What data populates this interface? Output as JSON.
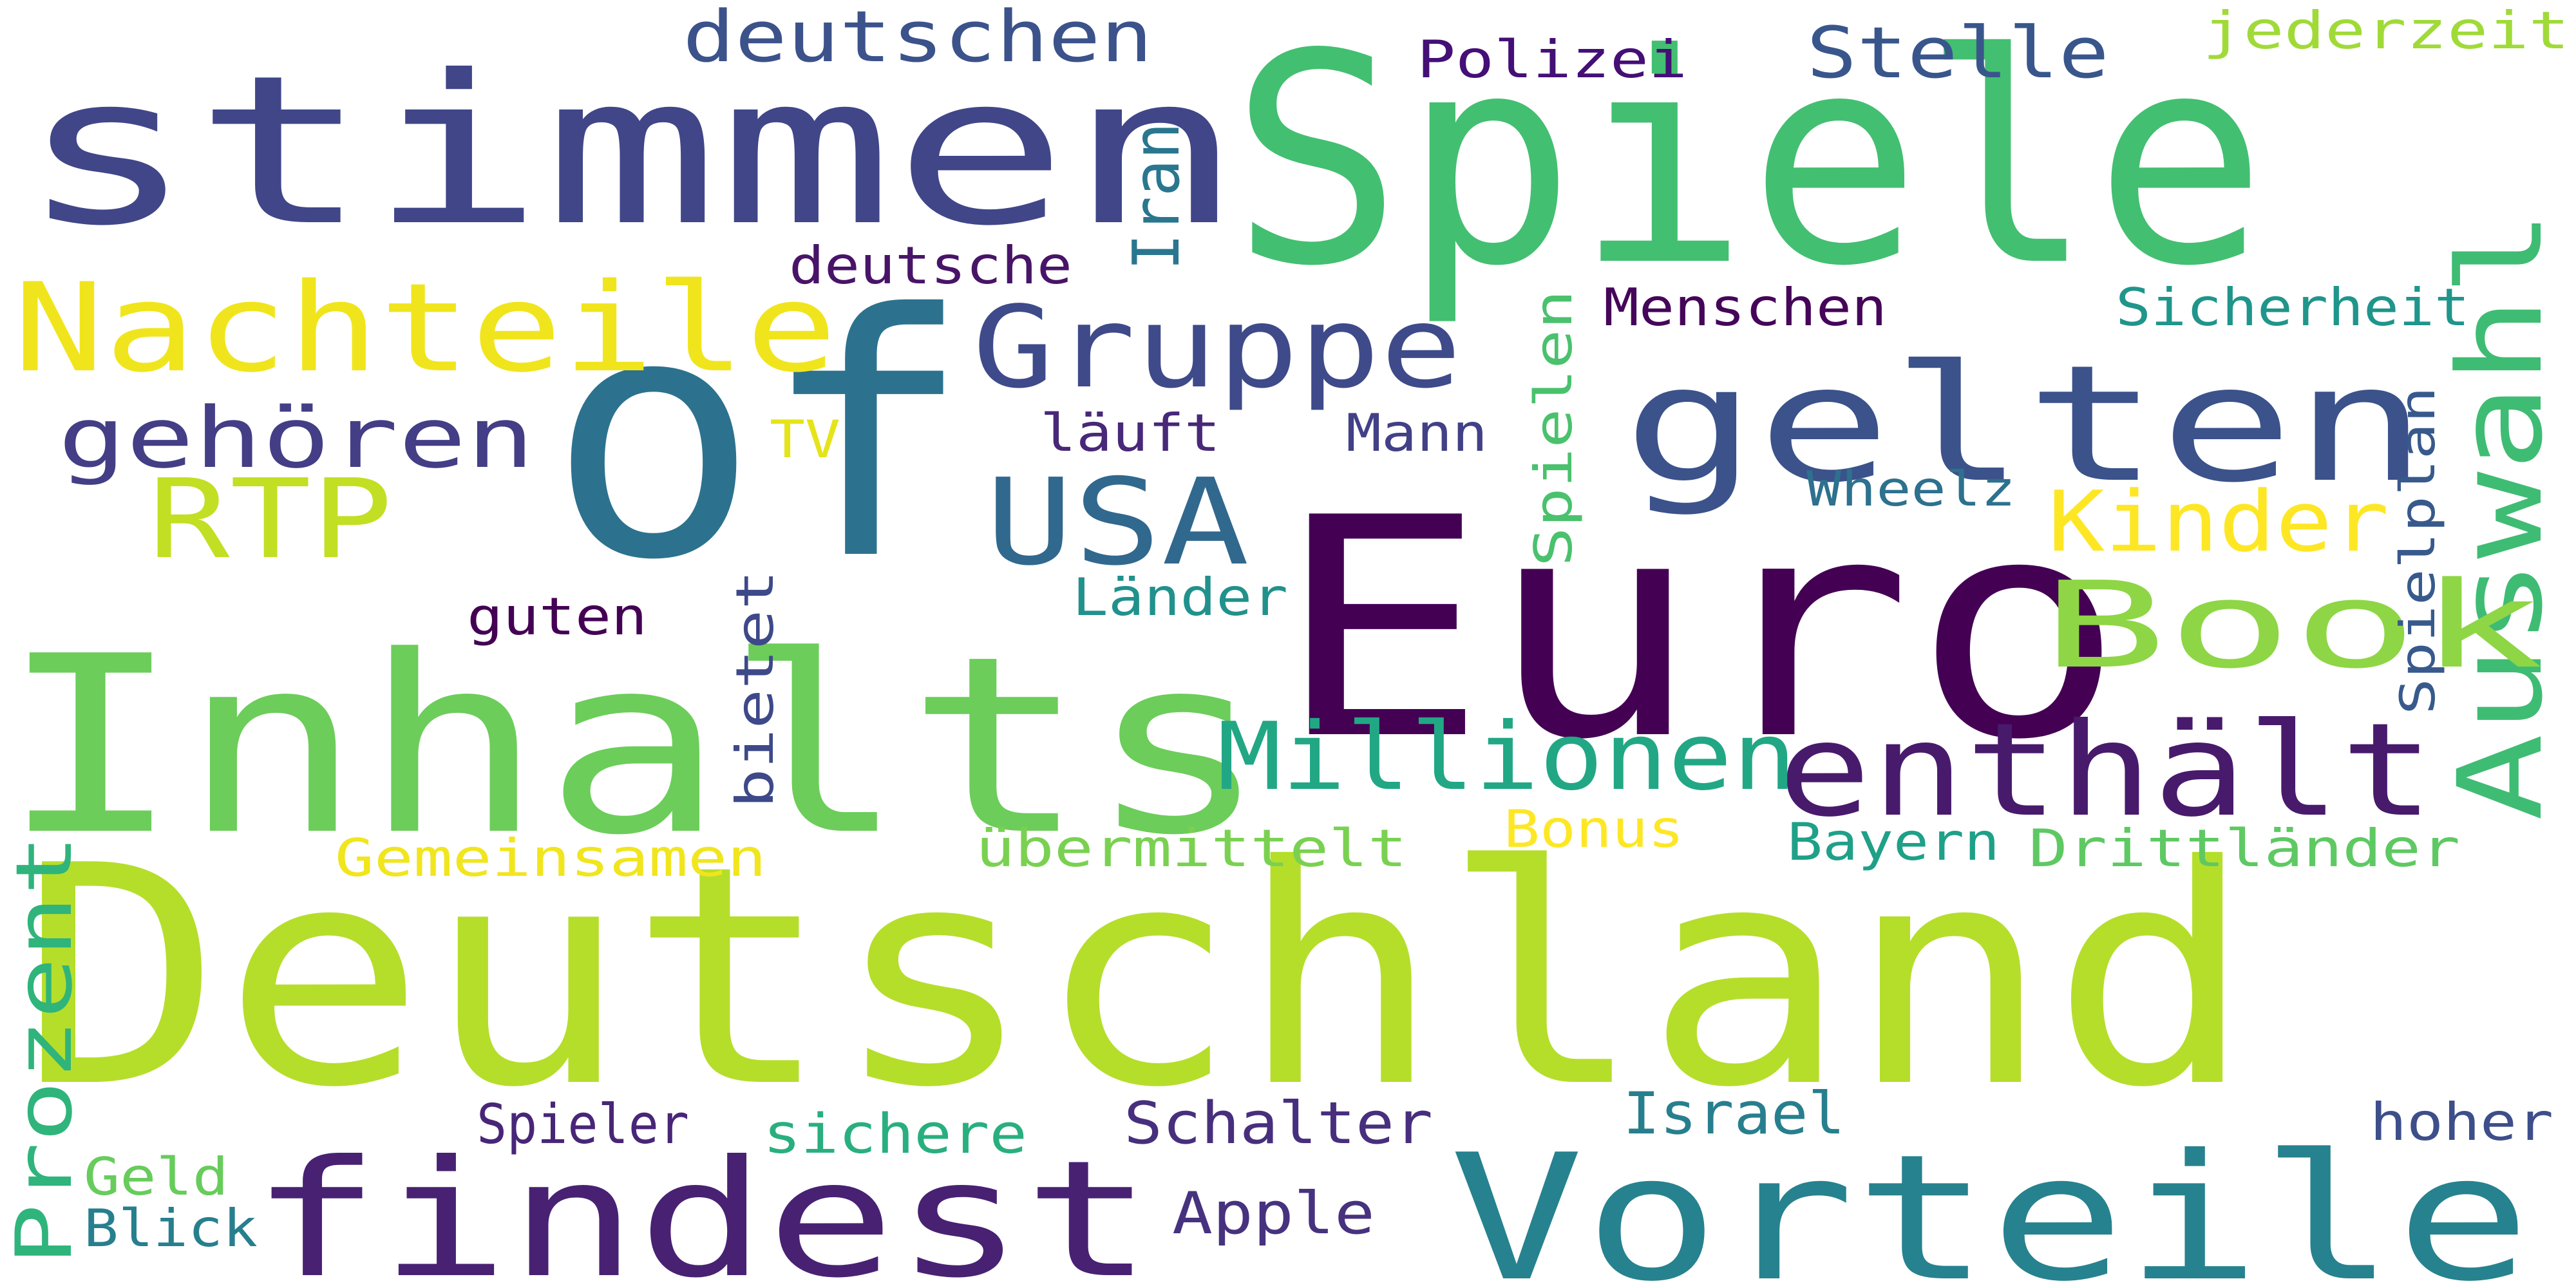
{
  "words": [
    {
      "text": "Deutschland",
      "color": "#b5de2b"
    },
    {
      "text": "Euro",
      "color": "#440154"
    },
    {
      "text": "Spiele",
      "color": "#43bf71"
    },
    {
      "text": "of",
      "color": "#2c728e"
    },
    {
      "text": "stimmen",
      "color": "#404688"
    },
    {
      "text": "Inhalts",
      "color": "#6ccd5a"
    },
    {
      "text": "Vorteile",
      "color": "#26828e"
    },
    {
      "text": "findest",
      "color": "#482173"
    },
    {
      "text": "gelten",
      "color": "#3b528b"
    },
    {
      "text": "enthält",
      "color": "#481a6c"
    },
    {
      "text": "Nachteile",
      "color": "#f0e51c"
    },
    {
      "text": "Gruppe",
      "color": "#3e4a89"
    },
    {
      "text": "Auswahl",
      "color": "#3fbc73"
    },
    {
      "text": "Book",
      "color": "#8ed645"
    },
    {
      "text": "USA",
      "color": "#31688e"
    },
    {
      "text": "Millionen",
      "color": "#22a785"
    },
    {
      "text": "RTP",
      "color": "#c2df23"
    },
    {
      "text": "gehören",
      "color": "#433e85"
    },
    {
      "text": "Kinder",
      "color": "#fde725"
    },
    {
      "text": "Prozent",
      "color": "#2fb47c"
    },
    {
      "text": "deutschen",
      "color": "#3b528b"
    },
    {
      "text": "Stelle",
      "color": "#39568c"
    },
    {
      "text": "Polizei",
      "color": "#440f76"
    },
    {
      "text": "jederzeit",
      "color": "#a0da39"
    },
    {
      "text": "Iran",
      "color": "#2a768e"
    },
    {
      "text": "deutsche",
      "color": "#481467"
    },
    {
      "text": "Menschen",
      "color": "#450559"
    },
    {
      "text": "Sicherheit",
      "color": "#1f958b"
    },
    {
      "text": "Spielen",
      "color": "#4ac16d"
    },
    {
      "text": "TV",
      "color": "#e5e419"
    },
    {
      "text": "läuft",
      "color": "#482878"
    },
    {
      "text": "Mann",
      "color": "#424086"
    },
    {
      "text": "Wheelz",
      "color": "#2d718e"
    },
    {
      "text": "Spielplan",
      "color": "#38598c"
    },
    {
      "text": "guten",
      "color": "#440154"
    },
    {
      "text": "bietet",
      "color": "#3e4989"
    },
    {
      "text": "Länder",
      "color": "#21918c"
    },
    {
      "text": "Gemeinsamen",
      "color": "#f1e51d"
    },
    {
      "text": "übermittelt",
      "color": "#7ad151"
    },
    {
      "text": "Bonus",
      "color": "#fde725"
    },
    {
      "text": "Bayern",
      "color": "#1fa088"
    },
    {
      "text": "Drittländer",
      "color": "#5ec962"
    },
    {
      "text": "Spieler",
      "color": "#482677"
    },
    {
      "text": "sichere",
      "color": "#29af7f"
    },
    {
      "text": "Schalter",
      "color": "#472f7d"
    },
    {
      "text": "Israel",
      "color": "#277f8e"
    },
    {
      "text": "hoher",
      "color": "#3d4e8a"
    },
    {
      "text": "Geld",
      "color": "#67cc5c"
    },
    {
      "text": "Blick",
      "color": "#277f8e"
    },
    {
      "text": "Apple",
      "color": "#46327e"
    }
  ]
}
